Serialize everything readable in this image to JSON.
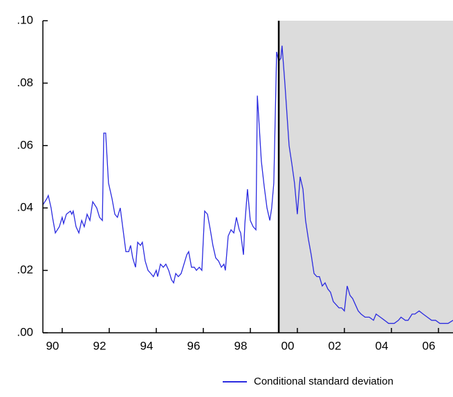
{
  "chart_data": {
    "type": "line",
    "x": [
      1989.59,
      1989.76,
      1989.82,
      1989.94,
      1990.0,
      1990.12,
      1990.29,
      1990.41,
      1990.47,
      1990.59,
      1990.76,
      1990.82,
      1990.88,
      1991.0,
      1991.12,
      1991.24,
      1991.35,
      1991.47,
      1991.59,
      1991.71,
      1991.88,
      1992.0,
      1992.12,
      1992.18,
      1992.26,
      1992.38,
      1992.53,
      1992.65,
      1992.76,
      1992.88,
      1993.0,
      1993.12,
      1993.24,
      1993.32,
      1993.41,
      1993.53,
      1993.62,
      1993.74,
      1993.82,
      1993.94,
      1994.06,
      1994.18,
      1994.29,
      1994.41,
      1994.47,
      1994.59,
      1994.71,
      1994.82,
      1994.94,
      1995.06,
      1995.15,
      1995.24,
      1995.35,
      1995.47,
      1995.59,
      1995.71,
      1995.79,
      1995.91,
      1996.03,
      1996.12,
      1996.24,
      1996.35,
      1996.47,
      1996.59,
      1996.71,
      1996.82,
      1996.94,
      1997.06,
      1997.18,
      1997.29,
      1997.35,
      1997.47,
      1997.59,
      1997.71,
      1997.82,
      1997.94,
      1998.0,
      1998.12,
      1998.18,
      1998.29,
      1998.41,
      1998.53,
      1998.65,
      1998.71,
      1998.76,
      1998.88,
      1999.0,
      1999.12,
      1999.24,
      1999.32,
      1999.41,
      1999.53,
      1999.62,
      1999.71,
      1999.76,
      1999.88,
      2000.06,
      2000.18,
      2000.29,
      2000.41,
      2000.53,
      2000.65,
      2000.76,
      2000.88,
      2001.0,
      2001.12,
      2001.24,
      2001.35,
      2001.47,
      2001.59,
      2001.71,
      2001.82,
      2001.94,
      2002.06,
      2002.18,
      2002.29,
      2002.41,
      2002.53,
      2002.65,
      2002.76,
      2002.88,
      2003.0,
      2003.12,
      2003.29,
      2003.47,
      2003.65,
      2003.76,
      2003.94,
      2004.12,
      2004.29,
      2004.53,
      2004.71,
      2004.82,
      2005.0,
      2005.12,
      2005.29,
      2005.41,
      2005.59,
      2005.76,
      2005.94,
      2006.12,
      2006.29,
      2006.47,
      2006.65,
      2006.82,
      2007.03
    ],
    "series": [
      {
        "name": "Conditional standard deviation",
        "color": "#2a2ae0",
        "values": [
          0.041,
          0.043,
          0.044,
          0.04,
          0.037,
          0.032,
          0.034,
          0.037,
          0.035,
          0.038,
          0.039,
          0.038,
          0.039,
          0.034,
          0.032,
          0.036,
          0.034,
          0.038,
          0.036,
          0.042,
          0.04,
          0.037,
          0.036,
          0.064,
          0.064,
          0.048,
          0.043,
          0.038,
          0.037,
          0.04,
          0.033,
          0.026,
          0.026,
          0.028,
          0.024,
          0.021,
          0.029,
          0.028,
          0.029,
          0.023,
          0.02,
          0.019,
          0.018,
          0.02,
          0.018,
          0.022,
          0.021,
          0.022,
          0.02,
          0.017,
          0.016,
          0.019,
          0.018,
          0.019,
          0.022,
          0.025,
          0.026,
          0.021,
          0.021,
          0.02,
          0.021,
          0.02,
          0.039,
          0.038,
          0.033,
          0.028,
          0.024,
          0.023,
          0.021,
          0.022,
          0.02,
          0.031,
          0.033,
          0.032,
          0.037,
          0.033,
          0.032,
          0.025,
          0.035,
          0.046,
          0.036,
          0.034,
          0.033,
          0.076,
          0.07,
          0.055,
          0.047,
          0.04,
          0.036,
          0.04,
          0.048,
          0.09,
          0.087,
          0.088,
          0.092,
          0.08,
          0.06,
          0.054,
          0.048,
          0.038,
          0.05,
          0.046,
          0.036,
          0.03,
          0.025,
          0.019,
          0.018,
          0.018,
          0.015,
          0.016,
          0.014,
          0.013,
          0.01,
          0.009,
          0.008,
          0.008,
          0.007,
          0.015,
          0.012,
          0.011,
          0.009,
          0.007,
          0.006,
          0.005,
          0.005,
          0.004,
          0.006,
          0.005,
          0.004,
          0.003,
          0.003,
          0.004,
          0.005,
          0.004,
          0.004,
          0.006,
          0.006,
          0.007,
          0.006,
          0.005,
          0.004,
          0.004,
          0.003,
          0.003,
          0.003,
          0.004
        ]
      }
    ],
    "xlim": [
      1989.59,
      2007.03
    ],
    "ylim": [
      0,
      0.1
    ],
    "xticks": [
      {
        "value": 1990,
        "label": "90"
      },
      {
        "value": 1992,
        "label": "92"
      },
      {
        "value": 1994,
        "label": "94"
      },
      {
        "value": 1996,
        "label": "96"
      },
      {
        "value": 1998,
        "label": "98"
      },
      {
        "value": 2000,
        "label": "00"
      },
      {
        "value": 2002,
        "label": "02"
      },
      {
        "value": 2004,
        "label": "04"
      },
      {
        "value": 2006,
        "label": "06"
      }
    ],
    "yticks": [
      {
        "value": 0,
        "label": ".00"
      },
      {
        "value": 0.02,
        "label": ".02"
      },
      {
        "value": 0.04,
        "label": ".04"
      },
      {
        "value": 0.06,
        "label": ".06"
      },
      {
        "value": 0.08,
        "label": ".08"
      },
      {
        "value": 0.1,
        "label": ".10"
      }
    ],
    "shade_from": 1999.62,
    "shade_color": "#dcdcdc",
    "grid": false,
    "legend": "bottom-right"
  }
}
